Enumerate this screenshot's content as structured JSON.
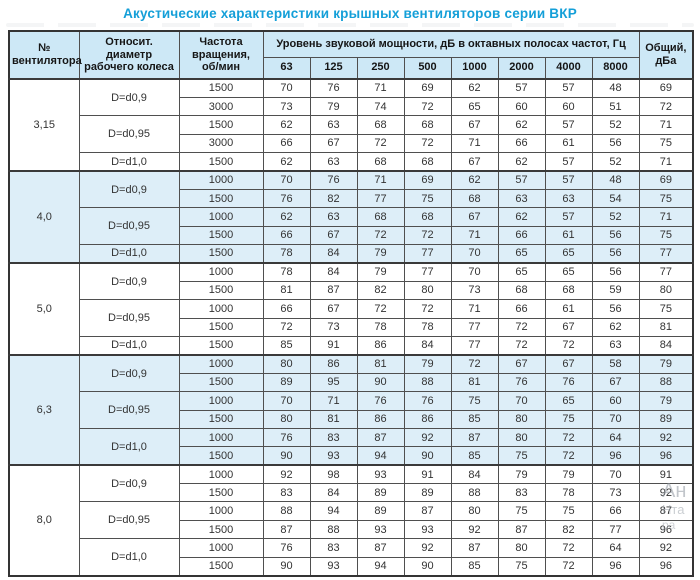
{
  "title": "Акустические характеристики крышных вентиляторов серии ВКР",
  "table": {
    "headers": {
      "col_fan": "№\nвентилятора",
      "col_diameter": "Относит. диаметр\nрабочего колеса",
      "col_speed": "Частота\nвращения,\nоб/мин",
      "col_spl_group": "Уровень звуковой мощности, дБ в октавных полосах частот, Гц",
      "freq_bands": [
        "63",
        "125",
        "250",
        "500",
        "1000",
        "2000",
        "4000",
        "8000"
      ],
      "col_total": "Общий,\nдБа"
    },
    "groups": [
      {
        "fan": "3,15",
        "shaded": false,
        "sub": [
          {
            "diameter": "D=d0,9",
            "rows": [
              {
                "rpm": "1500",
                "levels": [
                  70,
                  76,
                  71,
                  69,
                  62,
                  57,
                  57,
                  48
                ],
                "total": 69
              },
              {
                "rpm": "3000",
                "levels": [
                  73,
                  79,
                  74,
                  72,
                  65,
                  60,
                  60,
                  51
                ],
                "total": 72
              }
            ]
          },
          {
            "diameter": "D=d0,95",
            "rows": [
              {
                "rpm": "1500",
                "levels": [
                  62,
                  63,
                  68,
                  68,
                  67,
                  62,
                  57,
                  52
                ],
                "total": 71
              },
              {
                "rpm": "3000",
                "levels": [
                  66,
                  67,
                  72,
                  72,
                  71,
                  66,
                  61,
                  56
                ],
                "total": 75
              }
            ]
          },
          {
            "diameter": "D=d1,0",
            "rows": [
              {
                "rpm": "1500",
                "levels": [
                  62,
                  63,
                  68,
                  68,
                  67,
                  62,
                  57,
                  52
                ],
                "total": 71
              }
            ]
          }
        ]
      },
      {
        "fan": "4,0",
        "shaded": true,
        "sub": [
          {
            "diameter": "D=d0,9",
            "rows": [
              {
                "rpm": "1000",
                "levels": [
                  70,
                  76,
                  71,
                  69,
                  62,
                  57,
                  57,
                  48
                ],
                "total": 69
              },
              {
                "rpm": "1500",
                "levels": [
                  76,
                  82,
                  77,
                  75,
                  68,
                  63,
                  63,
                  54
                ],
                "total": 75
              }
            ]
          },
          {
            "diameter": "D=d0,95",
            "rows": [
              {
                "rpm": "1000",
                "levels": [
                  62,
                  63,
                  68,
                  68,
                  67,
                  62,
                  57,
                  52
                ],
                "total": 71
              },
              {
                "rpm": "1500",
                "levels": [
                  66,
                  67,
                  72,
                  72,
                  71,
                  66,
                  61,
                  56
                ],
                "total": 75
              }
            ]
          },
          {
            "diameter": "D=d1,0",
            "rows": [
              {
                "rpm": "1500",
                "levels": [
                  78,
                  84,
                  79,
                  77,
                  70,
                  65,
                  65,
                  56
                ],
                "total": 77
              }
            ]
          }
        ]
      },
      {
        "fan": "5,0",
        "shaded": false,
        "sub": [
          {
            "diameter": "D=d0,9",
            "rows": [
              {
                "rpm": "1000",
                "levels": [
                  78,
                  84,
                  79,
                  77,
                  70,
                  65,
                  65,
                  56
                ],
                "total": 77
              },
              {
                "rpm": "1500",
                "levels": [
                  81,
                  87,
                  82,
                  80,
                  73,
                  68,
                  68,
                  59
                ],
                "total": 80
              }
            ]
          },
          {
            "diameter": "D=d0,95",
            "rows": [
              {
                "rpm": "1000",
                "levels": [
                  66,
                  67,
                  72,
                  72,
                  71,
                  66,
                  61,
                  56
                ],
                "total": 75
              },
              {
                "rpm": "1500",
                "levels": [
                  72,
                  73,
                  78,
                  78,
                  77,
                  72,
                  67,
                  62
                ],
                "total": 81
              }
            ]
          },
          {
            "diameter": "D=d1,0",
            "rows": [
              {
                "rpm": "1500",
                "levels": [
                  85,
                  91,
                  86,
                  84,
                  77,
                  72,
                  72,
                  63
                ],
                "total": 84
              }
            ]
          }
        ]
      },
      {
        "fan": "6,3",
        "shaded": true,
        "sub": [
          {
            "diameter": "D=d0,9",
            "rows": [
              {
                "rpm": "1000",
                "levels": [
                  80,
                  86,
                  81,
                  79,
                  72,
                  67,
                  67,
                  58
                ],
                "total": 79
              },
              {
                "rpm": "1500",
                "levels": [
                  89,
                  95,
                  90,
                  88,
                  81,
                  76,
                  76,
                  67
                ],
                "total": 88
              }
            ]
          },
          {
            "diameter": "D=d0,95",
            "rows": [
              {
                "rpm": "1000",
                "levels": [
                  70,
                  71,
                  76,
                  76,
                  75,
                  70,
                  65,
                  60
                ],
                "total": 79
              },
              {
                "rpm": "1500",
                "levels": [
                  80,
                  81,
                  86,
                  86,
                  85,
                  80,
                  75,
                  70
                ],
                "total": 89
              }
            ]
          },
          {
            "diameter": "D=d1,0",
            "rows": [
              {
                "rpm": "1000",
                "levels": [
                  76,
                  83,
                  87,
                  92,
                  87,
                  80,
                  72,
                  64
                ],
                "total": 92
              },
              {
                "rpm": "1500",
                "levels": [
                  90,
                  93,
                  94,
                  90,
                  85,
                  75,
                  72,
                  96
                ],
                "total": 96
              }
            ]
          }
        ]
      },
      {
        "fan": "8,0",
        "shaded": false,
        "sub": [
          {
            "diameter": "D=d0,9",
            "rows": [
              {
                "rpm": "1000",
                "levels": [
                  92,
                  98,
                  93,
                  91,
                  84,
                  79,
                  79,
                  70
                ],
                "total": 91
              },
              {
                "rpm": "1500",
                "levels": [
                  83,
                  84,
                  89,
                  89,
                  88,
                  83,
                  78,
                  73
                ],
                "total": 92
              }
            ]
          },
          {
            "diameter": "D=d0,95",
            "rows": [
              {
                "rpm": "1000",
                "levels": [
                  88,
                  94,
                  89,
                  87,
                  80,
                  75,
                  75,
                  66
                ],
                "total": 87
              },
              {
                "rpm": "1500",
                "levels": [
                  87,
                  88,
                  93,
                  93,
                  92,
                  87,
                  82,
                  77
                ],
                "total": 96
              }
            ]
          },
          {
            "diameter": "D=d1,0",
            "rows": [
              {
                "rpm": "1000",
                "levels": [
                  76,
                  83,
                  87,
                  92,
                  87,
                  80,
                  72,
                  64
                ],
                "total": 92
              },
              {
                "rpm": "1500",
                "levels": [
                  90,
                  93,
                  94,
                  90,
                  85,
                  75,
                  72,
                  96
                ],
                "total": 96
              }
            ]
          }
        ]
      }
    ]
  },
  "watermark": {
    "fragments": [
      "Ан",
      "Нта",
      "ра"
    ]
  }
}
